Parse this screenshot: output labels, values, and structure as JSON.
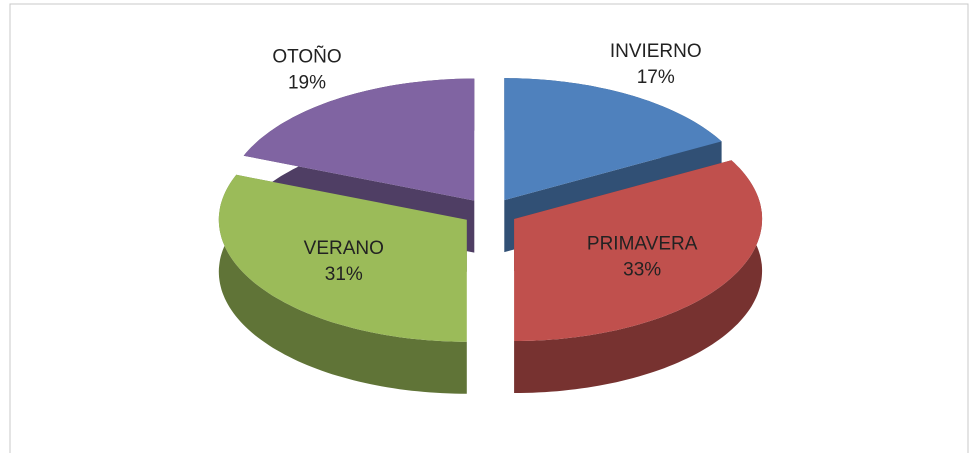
{
  "chart_data": {
    "type": "pie",
    "categories": [
      "INVIERNO",
      "PRIMAVERA",
      "VERANO",
      "OTOÑO"
    ],
    "values": [
      17,
      33,
      31,
      19
    ],
    "value_labels": [
      "17%",
      "33%",
      "31%",
      "19%"
    ],
    "colors": [
      "#4f81bd",
      "#c0504d",
      "#9bbb59",
      "#8064a2"
    ],
    "exploded": true,
    "three_d": true
  }
}
